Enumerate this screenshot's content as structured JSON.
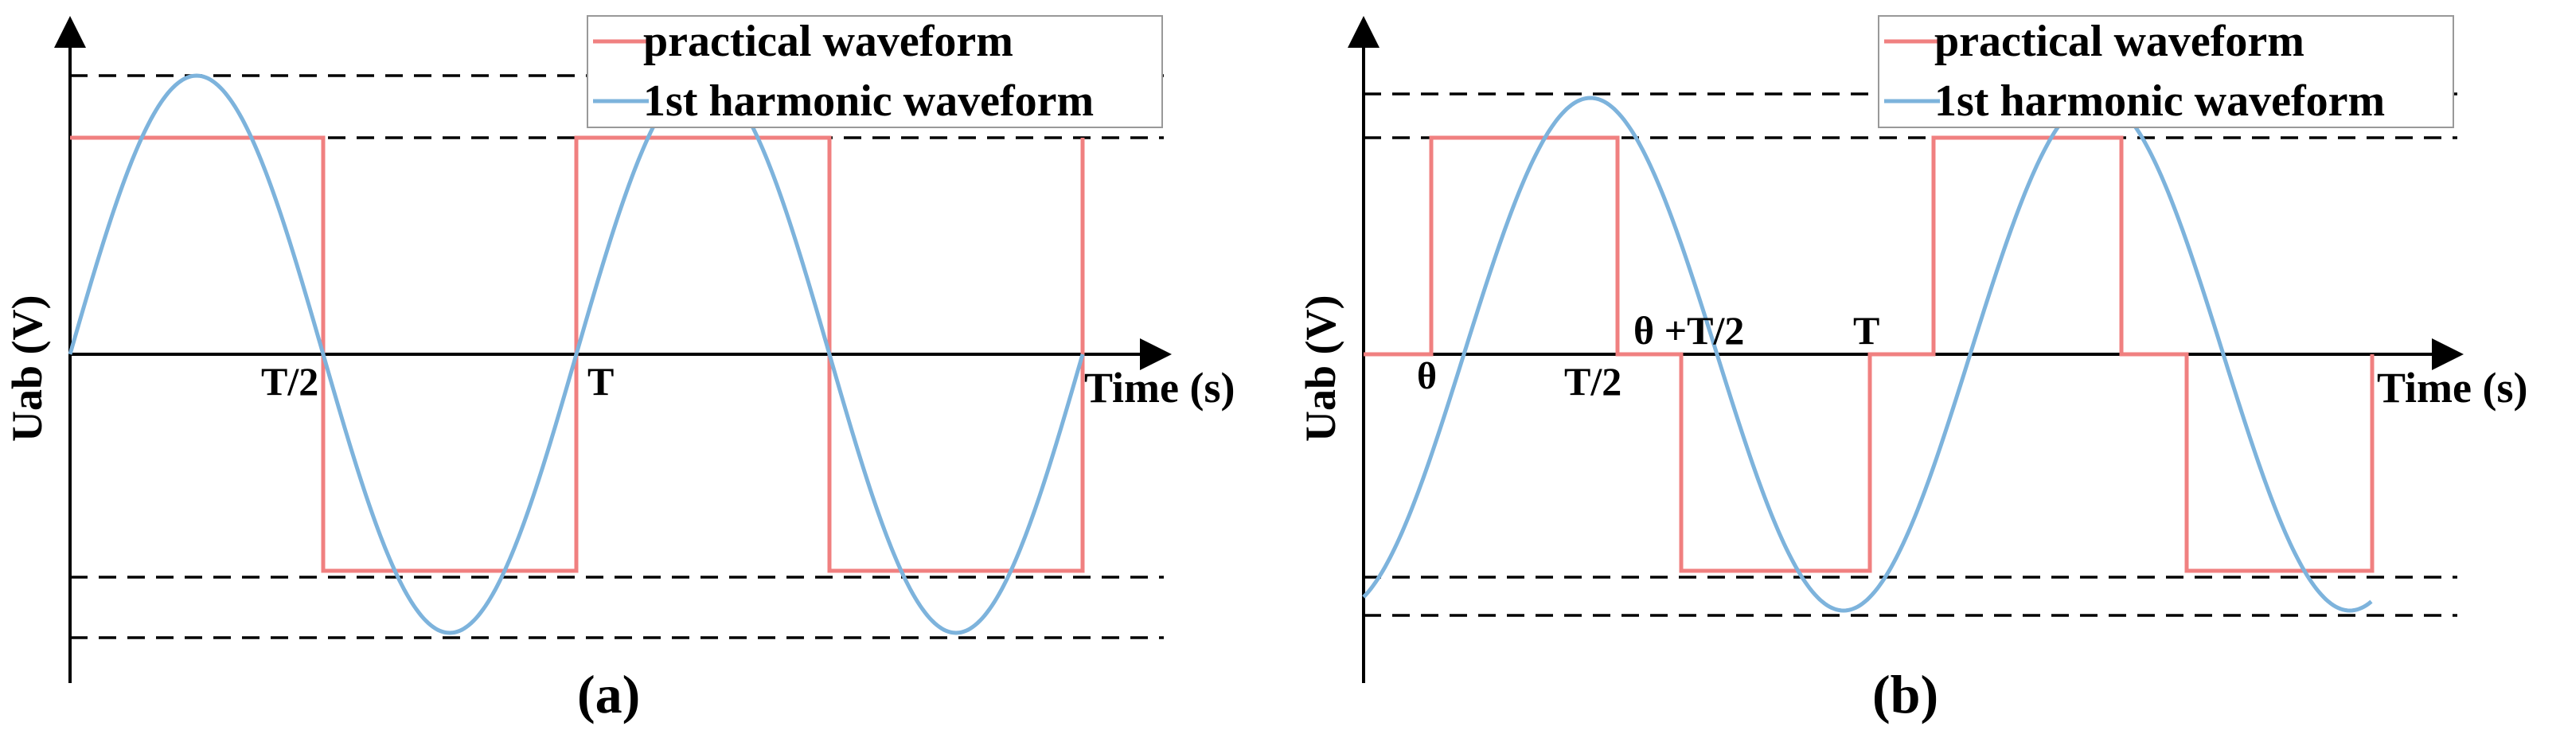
{
  "colors": {
    "practical": "#F08080",
    "harmonic": "#7DB3DC",
    "axis": "#000000",
    "legend_border": "#999999"
  },
  "legend": {
    "practical_label": "practical waveform",
    "harmonic_label": "1st harmonic waveform"
  },
  "panel_a": {
    "caption": "(a)",
    "ylabel": "Uab (V)",
    "xlabel": "Time (s)",
    "tick_half": "T/2",
    "tick_full": "T"
  },
  "panel_b": {
    "caption": "(b)",
    "ylabel": "Uab (V)",
    "xlabel": "Time (s)",
    "tick_theta": "θ",
    "tick_half": "T/2",
    "tick_theta_half": "θ +T/2",
    "tick_full": "T"
  }
}
